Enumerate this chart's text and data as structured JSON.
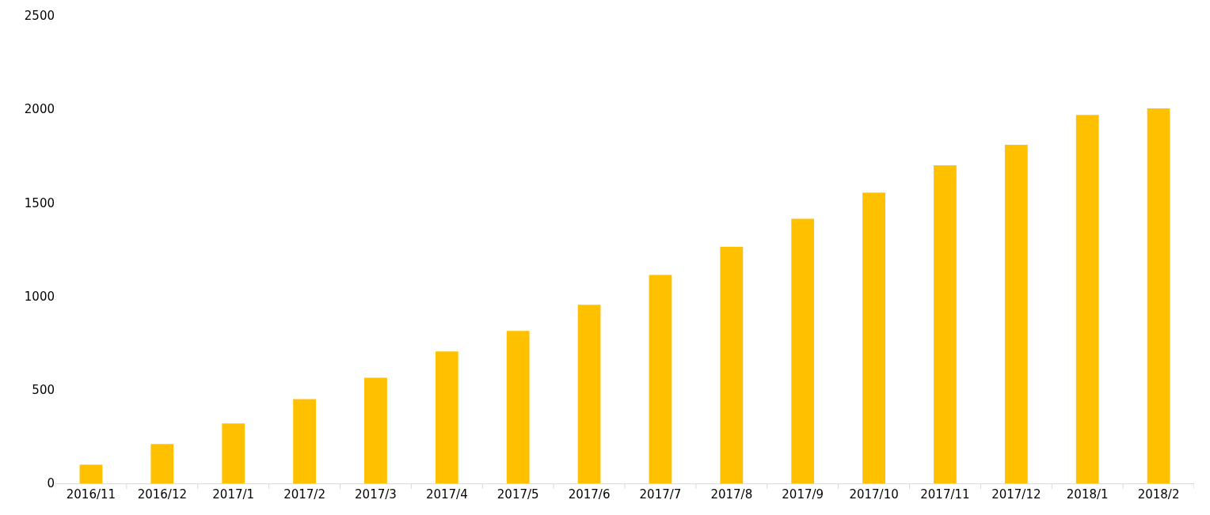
{
  "chart_data": {
    "type": "bar",
    "categories": [
      "2016/11",
      "2016/12",
      "2017/1",
      "2017/2",
      "2017/3",
      "2017/4",
      "2017/5",
      "2017/6",
      "2017/7",
      "2017/8",
      "2017/9",
      "2017/10",
      "2017/11",
      "2017/12",
      "2018/1",
      "2018/2"
    ],
    "values": [
      100,
      210,
      320,
      450,
      565,
      705,
      815,
      955,
      1115,
      1265,
      1415,
      1555,
      1700,
      1810,
      1970,
      2005
    ],
    "color": "#ffc000",
    "ylim": [
      0,
      2500
    ],
    "yticks": [
      0,
      500,
      1000,
      1500,
      2000,
      2500
    ],
    "grid": false,
    "legend": false
  }
}
